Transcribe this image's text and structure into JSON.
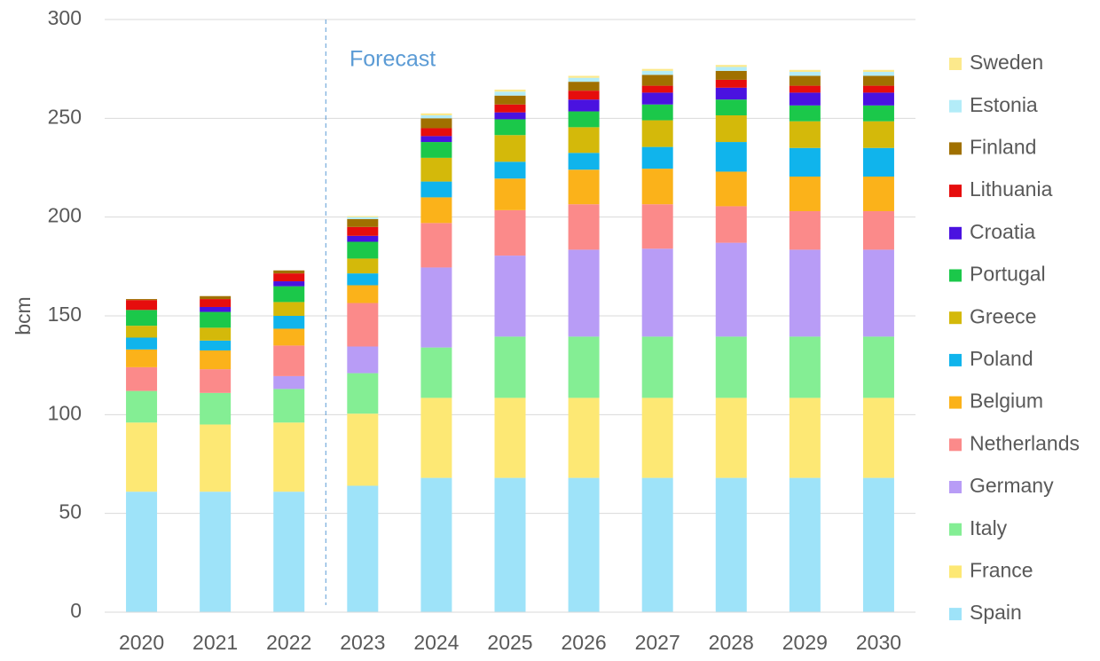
{
  "chart_data": {
    "type": "stacked_bar",
    "y_label": "bcm",
    "annotation": "Forecast",
    "forecast_start": "2023",
    "categories": [
      "2020",
      "2021",
      "2022",
      "2023",
      "2024",
      "2025",
      "2026",
      "2027",
      "2028",
      "2029",
      "2030"
    ],
    "ylim": [
      0,
      300
    ],
    "yticks": [
      0,
      50,
      100,
      150,
      200,
      250,
      300
    ],
    "grid": true,
    "series": [
      {
        "name": "Spain",
        "color": "#9ee3f9",
        "values": [
          61,
          61,
          61,
          64,
          68,
          68,
          68,
          68,
          68,
          68,
          68
        ]
      },
      {
        "name": "France",
        "color": "#fde874",
        "values": [
          35,
          34,
          35,
          36.5,
          40.5,
          40.5,
          40.5,
          40.5,
          40.5,
          40.5,
          40.5
        ]
      },
      {
        "name": "Italy",
        "color": "#84ee94",
        "values": [
          16,
          16,
          17,
          20.5,
          25.5,
          31,
          31,
          31,
          31,
          31,
          31
        ]
      },
      {
        "name": "Germany",
        "color": "#b89cf6",
        "values": [
          0,
          0,
          6.5,
          13.5,
          40.5,
          41,
          44,
          44.5,
          47.5,
          44,
          44
        ]
      },
      {
        "name": "Netherlands",
        "color": "#fb8a8a",
        "values": [
          12,
          12,
          15.5,
          22,
          22.5,
          23,
          23,
          22.5,
          18.5,
          19.5,
          19.5
        ]
      },
      {
        "name": "Belgium",
        "color": "#fbb21a",
        "values": [
          9,
          9.5,
          8.5,
          9,
          13,
          16,
          17.5,
          18,
          17.5,
          17.5,
          17.5
        ]
      },
      {
        "name": "Poland",
        "color": "#10b4ec",
        "values": [
          6,
          5,
          6.5,
          6,
          8,
          8.5,
          8.5,
          11,
          15,
          14.5,
          14.5
        ]
      },
      {
        "name": "Greece",
        "color": "#d4b90a",
        "values": [
          6,
          6.5,
          7,
          7.5,
          12,
          13.5,
          13,
          13.5,
          13.5,
          13.5,
          13.5
        ]
      },
      {
        "name": "Portugal",
        "color": "#1bc84a",
        "values": [
          8,
          8,
          8,
          8.5,
          8,
          8,
          8,
          8,
          8,
          8,
          8
        ]
      },
      {
        "name": "Croatia",
        "color": "#4a12e0",
        "values": [
          0,
          2.5,
          2.5,
          3,
          3,
          3.5,
          6,
          6,
          6,
          6.5,
          6.5
        ]
      },
      {
        "name": "Lithuania",
        "color": "#e60d0d",
        "values": [
          5,
          4,
          4,
          4.5,
          4,
          4,
          4.5,
          3.5,
          4,
          3.5,
          3.5
        ]
      },
      {
        "name": "Finland",
        "color": "#a07000",
        "values": [
          0.5,
          1.5,
          1.5,
          4,
          5,
          4.5,
          4.5,
          5.5,
          4.5,
          5,
          5
        ]
      },
      {
        "name": "Estonia",
        "color": "#b3ecf8",
        "values": [
          0,
          0,
          0,
          1,
          1.5,
          2,
          2,
          2,
          2,
          2,
          2
        ]
      },
      {
        "name": "Sweden",
        "color": "#fce98c",
        "values": [
          0,
          0,
          0,
          0.5,
          1,
          1,
          1,
          1,
          1,
          1,
          1
        ]
      }
    ]
  }
}
